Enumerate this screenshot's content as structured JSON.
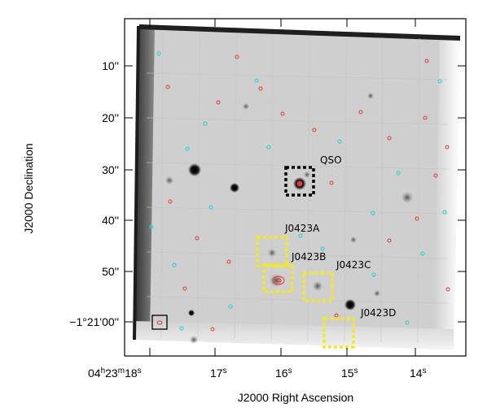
{
  "figure": {
    "xlabel": "J2000 Right Ascension",
    "ylabel": "J2000 Declination",
    "x_ticks": [
      {
        "h": "04",
        "m": "23",
        "s": "18",
        "value": 18
      },
      {
        "s": "17",
        "value": 17
      },
      {
        "s": "16",
        "value": 16
      },
      {
        "s": "15",
        "value": 15
      },
      {
        "s": "14",
        "value": 14
      }
    ],
    "y_ticks": [
      {
        "label": "10''",
        "value": 10
      },
      {
        "label": "20''",
        "value": 20
      },
      {
        "label": "30''",
        "value": 30
      },
      {
        "label": "40''",
        "value": 40
      },
      {
        "label": "50''",
        "value": 50
      },
      {
        "label": "−1°21'00''",
        "value": 60
      }
    ],
    "labels": [
      {
        "text": "QSO",
        "color": "#000000"
      },
      {
        "text": "J0423A",
        "color": "#000000"
      },
      {
        "text": "J0423B",
        "color": "#000000"
      },
      {
        "text": "J0423C",
        "color": "#000000"
      },
      {
        "text": "J0423D",
        "color": "#000000"
      }
    ],
    "colors": {
      "background_gray": "#cfcfcf",
      "frame_edge": "#3a3a3a",
      "contour_red": "#e8382c",
      "contour_cyan": "#33d6d6",
      "qso_box": "#000000",
      "galaxy_box": "#f2ea1c",
      "beam_box": "#000000"
    }
  }
}
